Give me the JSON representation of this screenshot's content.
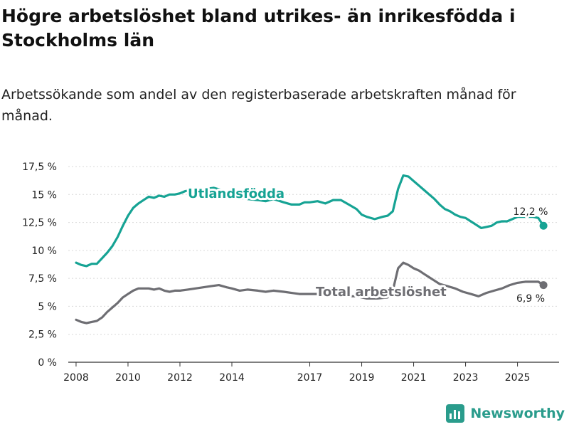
{
  "title": "Högre arbetslöshet bland utrikes- än inrikesfödda i Stockholms län",
  "subtitle": "Arbetssökande som andel av den registerbaserade arbetskraften månad för månad.",
  "brand": "Newsworthy",
  "colors": {
    "foreign": "#16a394",
    "total": "#6e6e73",
    "grid": "#d9d9d9",
    "axis": "#333333"
  },
  "chart_data": {
    "type": "line",
    "title": "Högre arbetslöshet bland utrikes- än inrikesfödda i Stockholms län",
    "xlabel": "",
    "ylabel": "",
    "ylim": [
      0,
      17.5
    ],
    "xlim": [
      2007.7,
      2026.6
    ],
    "yticks": [
      0,
      2.5,
      5,
      7.5,
      10,
      12.5,
      15,
      17.5
    ],
    "ytick_labels": [
      "0 %",
      "2,5 %",
      "5 %",
      "7,5 %",
      "10 %",
      "12,5 %",
      "15 %",
      "17,5 %"
    ],
    "xticks": [
      2008,
      2010,
      2012,
      2014,
      2017,
      2019,
      2021,
      2023,
      2025
    ],
    "xtick_labels": [
      "2008",
      "2010",
      "2012",
      "2014",
      "2017",
      "2019",
      "2021",
      "2023",
      "2025"
    ],
    "series": [
      {
        "name": "Utlandsfödda",
        "end_label": "12,2 %",
        "points": [
          [
            2008.0,
            8.9
          ],
          [
            2008.2,
            8.7
          ],
          [
            2008.4,
            8.6
          ],
          [
            2008.6,
            8.8
          ],
          [
            2008.8,
            8.8
          ],
          [
            2009.0,
            9.3
          ],
          [
            2009.2,
            9.8
          ],
          [
            2009.4,
            10.4
          ],
          [
            2009.6,
            11.2
          ],
          [
            2009.8,
            12.2
          ],
          [
            2010.0,
            13.1
          ],
          [
            2010.2,
            13.8
          ],
          [
            2010.4,
            14.2
          ],
          [
            2010.6,
            14.5
          ],
          [
            2010.8,
            14.8
          ],
          [
            2011.0,
            14.7
          ],
          [
            2011.2,
            14.9
          ],
          [
            2011.4,
            14.8
          ],
          [
            2011.6,
            15.0
          ],
          [
            2011.8,
            15.0
          ],
          [
            2012.0,
            15.1
          ],
          [
            2012.2,
            15.3
          ],
          [
            2012.5,
            15.4
          ],
          [
            2012.8,
            15.5
          ],
          [
            2013.0,
            15.5
          ],
          [
            2013.3,
            15.6
          ],
          [
            2013.6,
            15.4
          ],
          [
            2013.8,
            15.1
          ],
          [
            2014.0,
            14.9
          ],
          [
            2014.3,
            14.7
          ],
          [
            2014.6,
            14.6
          ],
          [
            2015.0,
            14.5
          ],
          [
            2015.3,
            14.4
          ],
          [
            2015.6,
            14.6
          ],
          [
            2016.0,
            14.3
          ],
          [
            2016.3,
            14.1
          ],
          [
            2016.6,
            14.1
          ],
          [
            2016.8,
            14.3
          ],
          [
            2017.0,
            14.3
          ],
          [
            2017.3,
            14.4
          ],
          [
            2017.6,
            14.2
          ],
          [
            2017.9,
            14.5
          ],
          [
            2018.2,
            14.5
          ],
          [
            2018.5,
            14.1
          ],
          [
            2018.8,
            13.7
          ],
          [
            2019.0,
            13.2
          ],
          [
            2019.2,
            13.0
          ],
          [
            2019.5,
            12.8
          ],
          [
            2019.8,
            13.0
          ],
          [
            2020.0,
            13.1
          ],
          [
            2020.2,
            13.5
          ],
          [
            2020.4,
            15.5
          ],
          [
            2020.6,
            16.7
          ],
          [
            2020.8,
            16.6
          ],
          [
            2021.0,
            16.2
          ],
          [
            2021.2,
            15.8
          ],
          [
            2021.4,
            15.4
          ],
          [
            2021.6,
            15.0
          ],
          [
            2021.8,
            14.6
          ],
          [
            2022.0,
            14.1
          ],
          [
            2022.2,
            13.7
          ],
          [
            2022.4,
            13.5
          ],
          [
            2022.6,
            13.2
          ],
          [
            2022.8,
            13.0
          ],
          [
            2023.0,
            12.9
          ],
          [
            2023.2,
            12.6
          ],
          [
            2023.4,
            12.3
          ],
          [
            2023.6,
            12.0
          ],
          [
            2023.8,
            12.1
          ],
          [
            2024.0,
            12.2
          ],
          [
            2024.2,
            12.5
          ],
          [
            2024.4,
            12.6
          ],
          [
            2024.6,
            12.6
          ],
          [
            2024.8,
            12.8
          ],
          [
            2025.0,
            13.0
          ],
          [
            2025.2,
            13.0
          ],
          [
            2025.4,
            13.0
          ],
          [
            2025.6,
            13.0
          ],
          [
            2025.8,
            12.9
          ],
          [
            2026.0,
            12.2
          ]
        ]
      },
      {
        "name": "Total arbetslöshet",
        "end_label": "6,9 %",
        "points": [
          [
            2008.0,
            3.8
          ],
          [
            2008.2,
            3.6
          ],
          [
            2008.4,
            3.5
          ],
          [
            2008.6,
            3.6
          ],
          [
            2008.8,
            3.7
          ],
          [
            2009.0,
            4.0
          ],
          [
            2009.2,
            4.5
          ],
          [
            2009.4,
            4.9
          ],
          [
            2009.6,
            5.3
          ],
          [
            2009.8,
            5.8
          ],
          [
            2010.0,
            6.1
          ],
          [
            2010.2,
            6.4
          ],
          [
            2010.4,
            6.6
          ],
          [
            2010.6,
            6.6
          ],
          [
            2010.8,
            6.6
          ],
          [
            2011.0,
            6.5
          ],
          [
            2011.2,
            6.6
          ],
          [
            2011.4,
            6.4
          ],
          [
            2011.6,
            6.3
          ],
          [
            2011.8,
            6.4
          ],
          [
            2012.0,
            6.4
          ],
          [
            2012.3,
            6.5
          ],
          [
            2012.6,
            6.6
          ],
          [
            2012.9,
            6.7
          ],
          [
            2013.2,
            6.8
          ],
          [
            2013.5,
            6.9
          ],
          [
            2013.8,
            6.7
          ],
          [
            2014.0,
            6.6
          ],
          [
            2014.3,
            6.4
          ],
          [
            2014.6,
            6.5
          ],
          [
            2015.0,
            6.4
          ],
          [
            2015.3,
            6.3
          ],
          [
            2015.6,
            6.4
          ],
          [
            2016.0,
            6.3
          ],
          [
            2016.3,
            6.2
          ],
          [
            2016.6,
            6.1
          ],
          [
            2017.0,
            6.1
          ],
          [
            2017.3,
            6.1
          ],
          [
            2017.6,
            6.1
          ],
          [
            2018.0,
            6.0
          ],
          [
            2018.4,
            5.9
          ],
          [
            2018.8,
            5.9
          ],
          [
            2019.2,
            5.7
          ],
          [
            2019.6,
            5.7
          ],
          [
            2020.0,
            5.8
          ],
          [
            2020.2,
            6.4
          ],
          [
            2020.4,
            8.4
          ],
          [
            2020.6,
            8.9
          ],
          [
            2020.8,
            8.7
          ],
          [
            2021.0,
            8.4
          ],
          [
            2021.2,
            8.2
          ],
          [
            2021.4,
            7.9
          ],
          [
            2021.6,
            7.6
          ],
          [
            2021.8,
            7.3
          ],
          [
            2022.0,
            7.0
          ],
          [
            2022.3,
            6.8
          ],
          [
            2022.6,
            6.6
          ],
          [
            2022.9,
            6.3
          ],
          [
            2023.2,
            6.1
          ],
          [
            2023.5,
            5.9
          ],
          [
            2023.8,
            6.2
          ],
          [
            2024.1,
            6.4
          ],
          [
            2024.4,
            6.6
          ],
          [
            2024.7,
            6.9
          ],
          [
            2025.0,
            7.1
          ],
          [
            2025.3,
            7.2
          ],
          [
            2025.6,
            7.2
          ],
          [
            2025.8,
            7.2
          ],
          [
            2026.0,
            6.9
          ]
        ]
      }
    ]
  }
}
